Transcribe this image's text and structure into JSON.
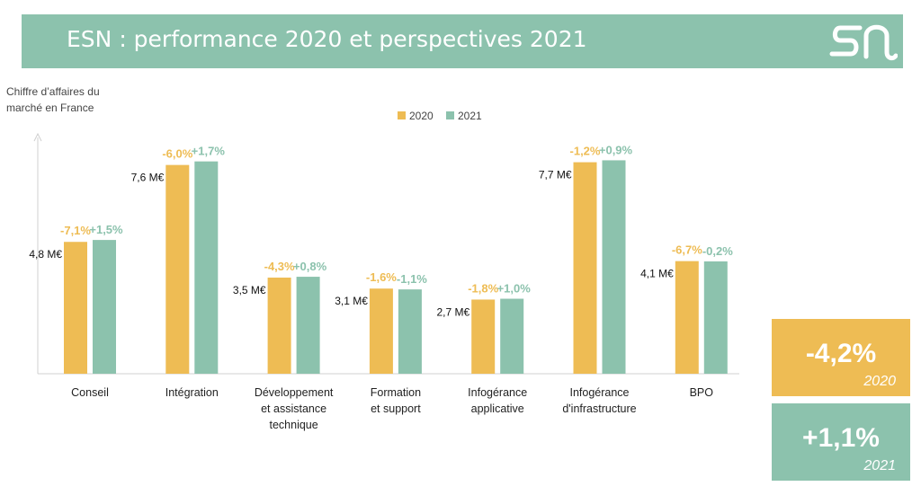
{
  "header": {
    "title": "ESN : performance 2020 et perspectives 2021"
  },
  "logo": {
    "name": "sn-logo"
  },
  "colors": {
    "header": "#8cc2ad",
    "series2020": "#eebc54",
    "series2021": "#8cc2ad",
    "axis": "#d0d0d0"
  },
  "chart_data": {
    "type": "bar",
    "title": "",
    "ylabel": "Chiffre d’affaires du marché en France",
    "xlabel": "",
    "legend": {
      "position": "top-center"
    },
    "grid": false,
    "categories": [
      "Conseil",
      "Intégration",
      "Développement et assistance technique",
      "Formation et support",
      "Infogérance applicative",
      "Infogérance d'infrastructure",
      "BPO"
    ],
    "category_lines": [
      [
        "Conseil"
      ],
      [
        "Intégration"
      ],
      [
        "Développement",
        "et assistance",
        "technique"
      ],
      [
        "Formation",
        "et support"
      ],
      [
        "Infogérance",
        "applicative"
      ],
      [
        "Infogérance",
        "d'infrastructure"
      ],
      [
        "BPO"
      ]
    ],
    "series": [
      {
        "name": "2020",
        "values": [
          4.8,
          7.6,
          3.5,
          3.1,
          2.7,
          7.7,
          4.1
        ],
        "value_labels": [
          "4,8 M€",
          "7,6 M€",
          "3,5 M€",
          "3,1 M€",
          "2,7 M€",
          "7,7 M€",
          "4,1 M€"
        ],
        "growth_labels": [
          "-7,1%",
          "-6,0%",
          "-4,3%",
          "-1,6%",
          "-1,8%",
          "-1,2%",
          "-6,7%"
        ]
      },
      {
        "name": "2021",
        "values": [
          4.87,
          7.73,
          3.53,
          3.07,
          2.73,
          7.77,
          4.09
        ],
        "growth_labels": [
          "+1,5%",
          "+1,7%",
          "+0,8%",
          "-1,1%",
          "+1,0%",
          "+0,9%",
          "-0,2%"
        ]
      }
    ],
    "ylim": [
      0,
      8.7
    ]
  },
  "kpis": [
    {
      "value": "-4,2%",
      "year": "2020"
    },
    {
      "value": "+1,1%",
      "year": "2021"
    }
  ]
}
